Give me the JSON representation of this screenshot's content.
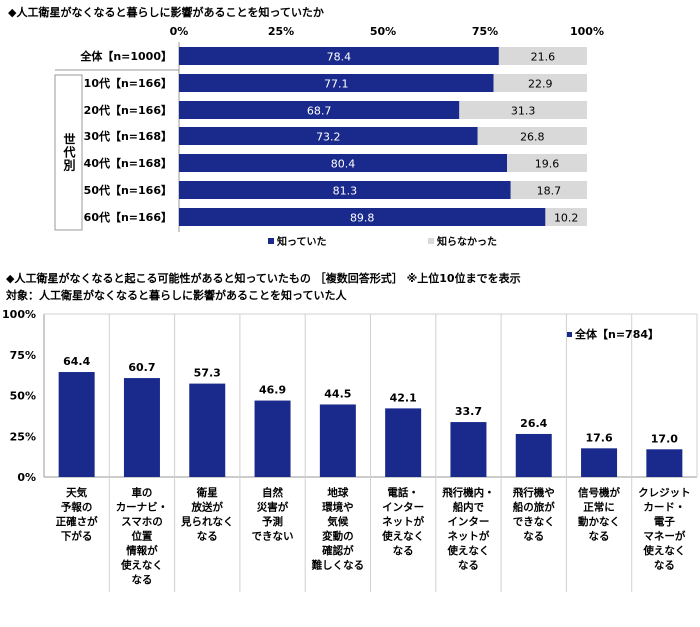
{
  "colors": {
    "known": "#1a2a8c",
    "unknown": "#d9d9d9",
    "grid": "#d0d0d0"
  },
  "chart_data": [
    {
      "type": "bar",
      "orientation": "horizontal-stacked",
      "title": "◆人工衛星がなくなると暮らしに影響があることを知っていたか",
      "group_label": "世代別",
      "x_ticks": [
        "0%",
        "25%",
        "50%",
        "75%",
        "100%"
      ],
      "xlim": [
        0,
        100
      ],
      "categories": [
        "全体【n=1000】",
        "10代【n=166】",
        "20代【n=166】",
        "30代【n=168】",
        "40代【n=168】",
        "50代【n=166】",
        "60代【n=166】"
      ],
      "series": [
        {
          "name": "知っていた",
          "values": [
            78.4,
            77.1,
            68.7,
            73.2,
            80.4,
            81.3,
            89.8
          ]
        },
        {
          "name": "知らなかった",
          "values": [
            21.6,
            22.9,
            31.3,
            26.8,
            19.6,
            18.7,
            10.2
          ]
        }
      ],
      "legend": "bottom"
    },
    {
      "type": "bar",
      "title": "◆人工衛星がなくなると起こる可能性があると知っていたもの ［複数回答形式］ ※上位10位までを表示",
      "subtitle": "対象：人工衛星がなくなると暮らしに影響があることを知っていた人",
      "y_ticks": [
        "100%",
        "75%",
        "50%",
        "25%",
        "0%"
      ],
      "ylim": [
        0,
        100
      ],
      "categories": [
        [
          "天気",
          "予報の",
          "正確さが",
          "下がる"
        ],
        [
          "車の",
          "カーナビ・",
          "スマホの",
          "位置",
          "情報が",
          "使えなく",
          "なる"
        ],
        [
          "衛星",
          "放送が",
          "見られなく",
          "なる"
        ],
        [
          "自然",
          "災害が",
          "予測",
          "できない"
        ],
        [
          "地球",
          "環境や",
          "気候",
          "変動の",
          "確認が",
          "難しくなる"
        ],
        [
          "電話・",
          "インター",
          "ネットが",
          "使えなく",
          "なる"
        ],
        [
          "飛行機内・",
          "船内で",
          "インター",
          "ネットが",
          "使えなく",
          "なる"
        ],
        [
          "飛行機や",
          "船の旅が",
          "できなく",
          "なる"
        ],
        [
          "信号機が",
          "正常に",
          "動かなく",
          "なる"
        ],
        [
          "クレジット",
          "カード・",
          "電子",
          "マネーが",
          "使えなく",
          "なる"
        ]
      ],
      "series": [
        {
          "name": "全体【n=784】",
          "values": [
            64.4,
            60.7,
            57.3,
            46.9,
            44.5,
            42.1,
            33.7,
            26.4,
            17.6,
            17.0
          ]
        }
      ],
      "legend": "top-right"
    }
  ]
}
